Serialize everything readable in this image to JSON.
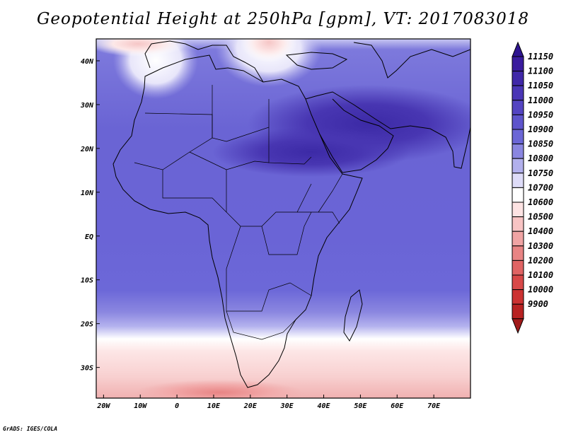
{
  "title": "Geopotential Height at 250hPa [gpm], VT: 2017083018",
  "credit": "GrADS: IGES/COLA",
  "map": {
    "lon_range": [
      -22,
      80
    ],
    "lat_range": [
      -37,
      45
    ],
    "lon_ticks": [
      {
        "value": -20,
        "label": "20W"
      },
      {
        "value": -10,
        "label": "10W"
      },
      {
        "value": 0,
        "label": "0"
      },
      {
        "value": 10,
        "label": "10E"
      },
      {
        "value": 20,
        "label": "20E"
      },
      {
        "value": 30,
        "label": "30E"
      },
      {
        "value": 40,
        "label": "40E"
      },
      {
        "value": 50,
        "label": "50E"
      },
      {
        "value": 60,
        "label": "60E"
      },
      {
        "value": 70,
        "label": "70E"
      }
    ],
    "lat_ticks": [
      {
        "value": 40,
        "label": "40N"
      },
      {
        "value": 30,
        "label": "30N"
      },
      {
        "value": 20,
        "label": "20N"
      },
      {
        "value": 10,
        "label": "10N"
      },
      {
        "value": 0,
        "label": "EQ"
      },
      {
        "value": -10,
        "label": "10S"
      },
      {
        "value": -20,
        "label": "20S"
      },
      {
        "value": -30,
        "label": "30S"
      }
    ]
  },
  "colorbar": {
    "levels": [
      {
        "label": "11150",
        "color": "#3a1c9e"
      },
      {
        "label": "11100",
        "color": "#4028a8"
      },
      {
        "label": "11050",
        "color": "#4a36b6"
      },
      {
        "label": "11000",
        "color": "#5444c2"
      },
      {
        "label": "10950",
        "color": "#5e54cc"
      },
      {
        "label": "10900",
        "color": "#6b66d6"
      },
      {
        "label": "10850",
        "color": "#8a86e0"
      },
      {
        "label": "10800",
        "color": "#b2b0ec"
      },
      {
        "label": "10750",
        "color": "#dedcf8"
      },
      {
        "label": "10700",
        "color": "#ffffff"
      },
      {
        "label": "10600",
        "color": "#fde3e3"
      },
      {
        "label": "10500",
        "color": "#f8c4c4"
      },
      {
        "label": "10400",
        "color": "#f0a4a4"
      },
      {
        "label": "10300",
        "color": "#e88484"
      },
      {
        "label": "10200",
        "color": "#e06464"
      },
      {
        "label": "10100",
        "color": "#d84848"
      },
      {
        "label": "10000",
        "color": "#cc3232"
      },
      {
        "label": "9900",
        "color": "#b82222"
      }
    ],
    "top_color": "#2e1490",
    "bottom_color": "#a01a1a"
  }
}
